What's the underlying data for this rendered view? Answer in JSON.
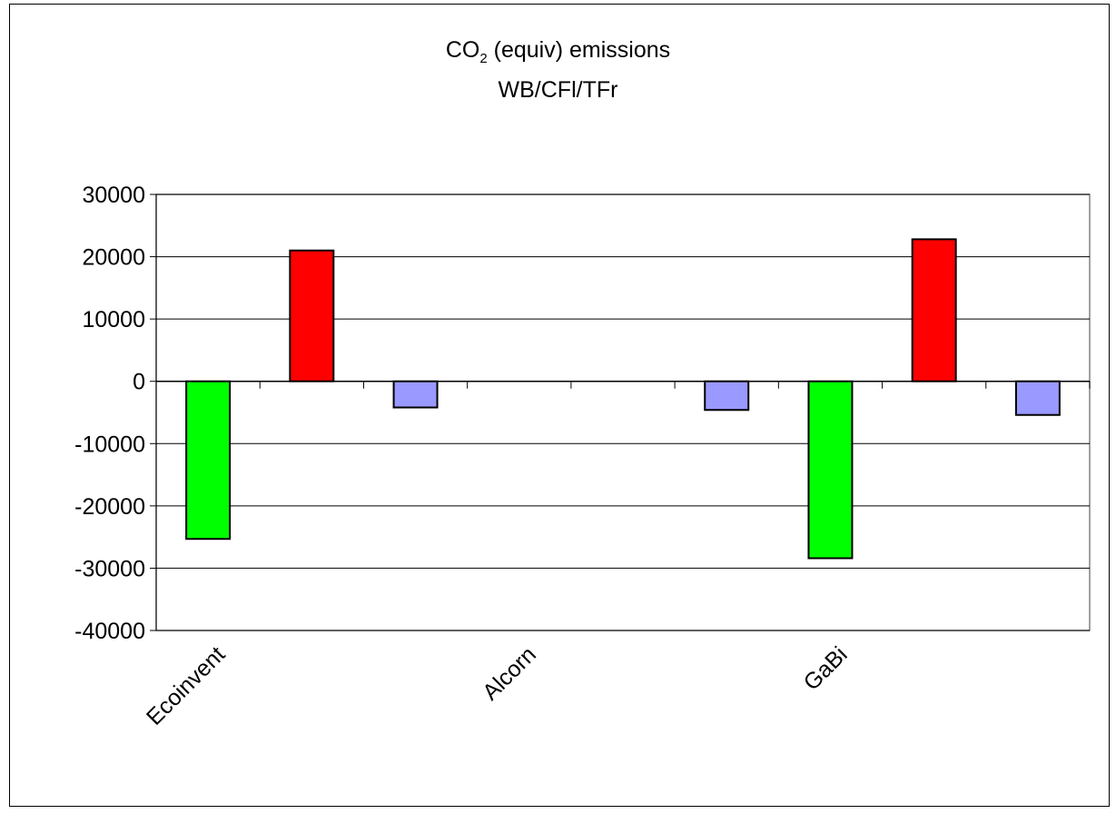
{
  "chart_data": {
    "type": "bar",
    "title": {
      "prefix": "CO",
      "subscript": "2",
      "suffix": " (equiv) emissions",
      "subtitle": "WB/CFl/TFr"
    },
    "categories": [
      "Ecoinvent",
      "Alcorn",
      "GaBi"
    ],
    "series": [
      {
        "color": "#00ff00",
        "values": [
          -25300,
          null,
          -28400
        ]
      },
      {
        "color": "#ff0000",
        "values": [
          21000,
          null,
          22800
        ]
      },
      {
        "color": "#9999ff",
        "values": [
          -4200,
          -4600,
          -5400
        ]
      }
    ],
    "ylim": [
      -40000,
      30000
    ],
    "yticks": [
      30000,
      20000,
      10000,
      0,
      -10000,
      -20000,
      -30000,
      -40000
    ],
    "grid": true,
    "legend": "none"
  }
}
